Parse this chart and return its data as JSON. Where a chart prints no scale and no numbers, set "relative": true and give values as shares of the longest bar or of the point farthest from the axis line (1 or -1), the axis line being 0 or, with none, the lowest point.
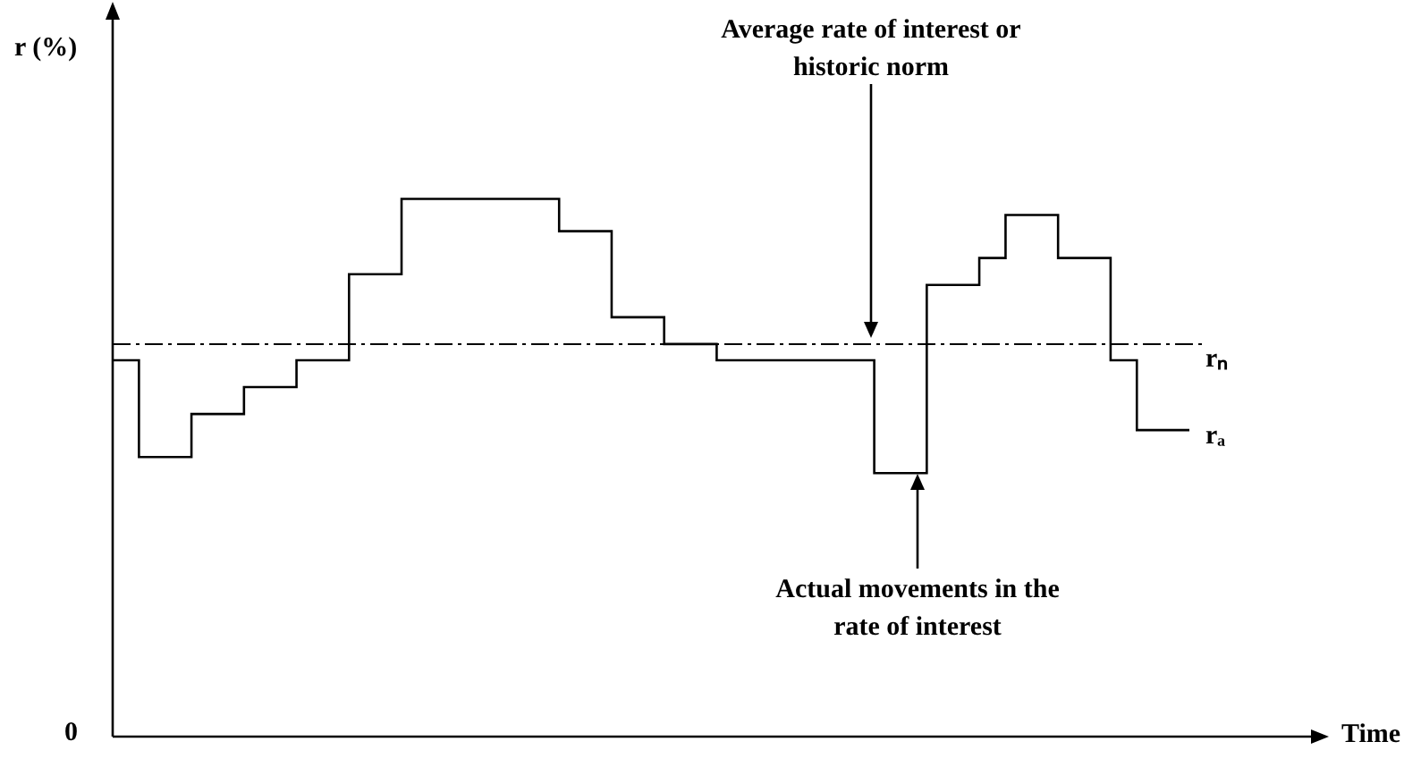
{
  "chart_data": {
    "type": "step",
    "relative": true,
    "categories": [
      null,
      null,
      null,
      null,
      null,
      null,
      null,
      null,
      null,
      null,
      null,
      null,
      null,
      null,
      null,
      null,
      null,
      null,
      null,
      null,
      null,
      null,
      null,
      null,
      null,
      null,
      null,
      null,
      null,
      null,
      null,
      null,
      null,
      null,
      null,
      null,
      null,
      null,
      null,
      null,
      null,
      null
    ],
    "series": [
      {
        "name": "rₐ",
        "color": "#000000",
        "values": [
          0.7,
          0.7,
          0.52,
          0.52,
          0.6,
          0.6,
          0.65,
          0.65,
          0.7,
          0.7,
          0.86,
          0.86,
          1,
          1,
          1,
          1,
          1,
          1,
          0.94,
          0.94,
          0.78,
          0.78,
          0.73,
          0.73,
          0.7,
          0.7,
          0.7,
          0.7,
          0.7,
          0.7,
          0.49,
          0.49,
          0.84,
          0.84,
          0.89,
          0.97,
          0.97,
          0.89,
          0.89,
          0.7,
          0.57,
          0.57
        ]
      }
    ],
    "ref_lines": [
      {
        "axis": "y",
        "value": 0.73,
        "label": "rₙ",
        "color": "#000000",
        "line_style": "dashdot"
      }
    ],
    "annotations": [
      "Average rate of interest or historic norm",
      "Actual movements in the rate of interest",
      "0",
      "r (%)",
      "Time"
    ],
    "legend": false,
    "line_style": "solid",
    "marker": "none"
  }
}
